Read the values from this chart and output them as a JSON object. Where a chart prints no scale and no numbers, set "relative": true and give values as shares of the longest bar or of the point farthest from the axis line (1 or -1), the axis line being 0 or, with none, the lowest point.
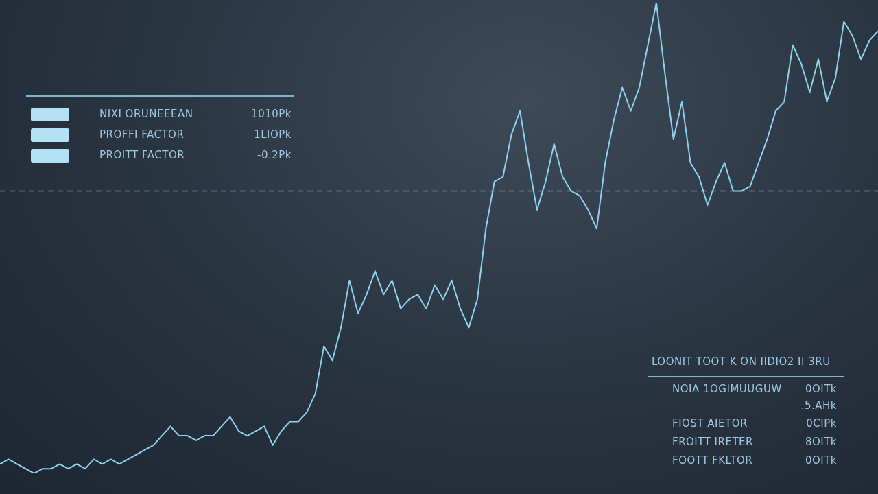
{
  "chart_data": {
    "type": "line",
    "relative": true,
    "legend": false,
    "marker": "none",
    "line_style": "solid",
    "categories": [
      null,
      null,
      null,
      null,
      null,
      null,
      null,
      null,
      null,
      null,
      null,
      null,
      null,
      null,
      null,
      null,
      null,
      null,
      null,
      null,
      null,
      null,
      null,
      null,
      null,
      null,
      null,
      null,
      null,
      null,
      null,
      null,
      null,
      null,
      null,
      null,
      null,
      null,
      null,
      null,
      null,
      null,
      null,
      null,
      null,
      null,
      null,
      null,
      null,
      null,
      null,
      null,
      null,
      null,
      null,
      null,
      null,
      null,
      null,
      null,
      null,
      null,
      null,
      null,
      null,
      null,
      null,
      null,
      null,
      null,
      null,
      null,
      null,
      null,
      null,
      null,
      null,
      null,
      null,
      null,
      null,
      null,
      null,
      null,
      null,
      null,
      null,
      null,
      null,
      null,
      null,
      null,
      null,
      null,
      null,
      null,
      null,
      null,
      null,
      null,
      null,
      null,
      null,
      null
    ],
    "series": [
      {
        "color": "#8fd3f0",
        "values": [
          0.02,
          0.03,
          0.02,
          0.01,
          0,
          0.01,
          0.01,
          0.02,
          0.01,
          0.02,
          0.01,
          0.03,
          0.02,
          0.03,
          0.02,
          0.03,
          0.04,
          0.05,
          0.06,
          0.08,
          0.1,
          0.08,
          0.08,
          0.07,
          0.08,
          0.08,
          0.1,
          0.12,
          0.09,
          0.08,
          0.09,
          0.1,
          0.06,
          0.09,
          0.11,
          0.11,
          0.13,
          0.17,
          0.27,
          0.24,
          0.31,
          0.41,
          0.34,
          0.38,
          0.43,
          0.38,
          0.41,
          0.35,
          0.37,
          0.38,
          0.35,
          0.4,
          0.37,
          0.41,
          0.35,
          0.31,
          0.37,
          0.52,
          0.62,
          0.63,
          0.72,
          0.77,
          0.66,
          0.56,
          0.62,
          0.7,
          0.63,
          0.6,
          0.59,
          0.56,
          0.52,
          0.66,
          0.75,
          0.82,
          0.77,
          0.82,
          0.91,
          1,
          0.85,
          0.71,
          0.79,
          0.66,
          0.63,
          0.57,
          0.62,
          0.66,
          0.6,
          0.6,
          0.61,
          0.66,
          0.71,
          0.77,
          0.79,
          0.91,
          0.87,
          0.81,
          0.88,
          0.79,
          0.84,
          0.96,
          0.93,
          0.88,
          0.92,
          0.94
        ]
      }
    ],
    "ref_lines": [
      {
        "axis": "y",
        "value": 0.6,
        "color": "#8aa0b4",
        "line_style": "dashed"
      }
    ],
    "annotations": [
      "NIXI ORUNEEEAN",
      "1010Pk",
      "PROFFI FACTOR",
      "1LIOPk",
      "PROITT FACTOR",
      "-0.2Pk",
      "LOONIT TOOT K ON IIDIO2 II 3RU",
      "NOIA 1OGIMUUGUW",
      "0OITk",
      ".5.AHk",
      "FIOST AIETOR",
      "0CIPk",
      "FROITT IRETER",
      "8OITk",
      "FOOTT FKLTOR",
      "0OITk"
    ]
  }
}
